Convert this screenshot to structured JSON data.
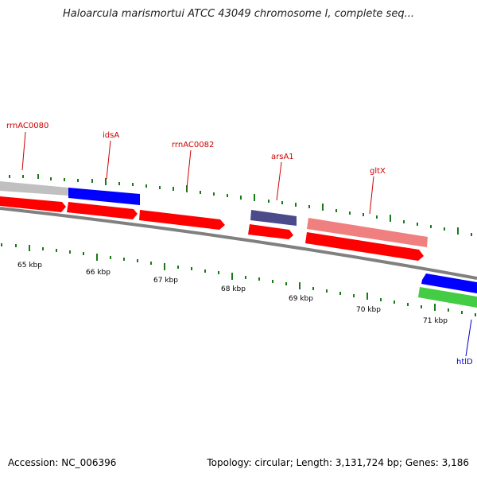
{
  "title": "Haloarcula marismortui ATCC 43049 chromosome I, complete seq...",
  "footer": {
    "accession": "Accession: NC_006396",
    "summary": "Topology: circular; Length: 3,131,724 bp; Genes: 3,186"
  },
  "colors": {
    "backbone": "#808080",
    "tick": "#1a7a1a",
    "label_red": "#cc0000",
    "label_blue": "#0000cc",
    "arrow_red": "#ff0000",
    "arrow_blue": "#0000ff",
    "arrow_navy": "#4b4a8a",
    "arrow_pink": "#f08080",
    "arrow_grey": "#c0c0c0",
    "arrow_green": "#44cc44"
  },
  "scale": {
    "unit": "kbp",
    "labels": [
      "65 kbp",
      "66 kbp",
      "67 kbp",
      "68 kbp",
      "69 kbp",
      "70 kbp",
      "71 kbp"
    ]
  },
  "gene_labels": [
    {
      "name": "rrnAC0080",
      "color": "label_red"
    },
    {
      "name": "idsA",
      "color": "label_red"
    },
    {
      "name": "rrnAC0082",
      "color": "label_red"
    },
    {
      "name": "arsA1",
      "color": "label_red"
    },
    {
      "name": "gltX",
      "color": "label_red"
    },
    {
      "name": "htlD",
      "color": "label_blue"
    }
  ]
}
